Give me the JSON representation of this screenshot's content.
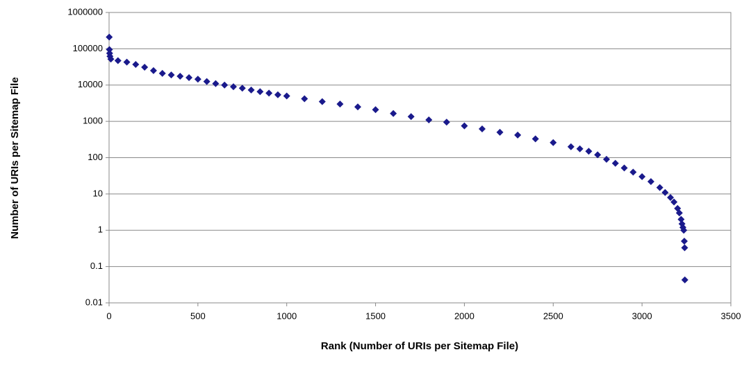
{
  "chart_data": {
    "type": "scatter",
    "x_label": "Rank (Number of URIs per Sitemap File)",
    "y_label": "Number of URIs per Sitemap File",
    "color": "#1a1a8c",
    "y_log": true,
    "grid": true,
    "x": [
      1,
      2,
      3,
      5,
      10,
      50,
      100,
      150,
      200,
      250,
      300,
      350,
      400,
      450,
      500,
      550,
      600,
      650,
      700,
      750,
      800,
      850,
      900,
      950,
      1000,
      1100,
      1200,
      1300,
      1400,
      1500,
      1600,
      1700,
      1800,
      1900,
      2000,
      2100,
      2200,
      2300,
      2400,
      2500,
      2600,
      2650,
      2700,
      2750,
      2800,
      2850,
      2900,
      2950,
      3000,
      3050,
      3100,
      3130,
      3160,
      3180,
      3200,
      3210,
      3220,
      3225,
      3230,
      3235,
      3238,
      3240,
      3241
    ],
    "values": [
      210000,
      95000,
      75000,
      62000,
      52000,
      47000,
      43000,
      37000,
      31000,
      25000,
      21000,
      19000,
      17500,
      16000,
      14500,
      12500,
      11000,
      10000,
      9000,
      8200,
      7300,
      6600,
      6000,
      5400,
      5000,
      4200,
      3500,
      3000,
      2500,
      2100,
      1650,
      1350,
      1100,
      950,
      750,
      620,
      500,
      420,
      330,
      260,
      200,
      175,
      150,
      120,
      90,
      70,
      52,
      40,
      30,
      22,
      15,
      11,
      8,
      6,
      4,
      3,
      2,
      1.5,
      1.2,
      1,
      0.5,
      0.33,
      0.043
    ],
    "xlim": [
      0,
      3500
    ],
    "xticks": [
      0,
      500,
      1000,
      1500,
      2000,
      2500,
      3000,
      3500
    ],
    "ylim": [
      0.01,
      1000000
    ],
    "yticks": [
      0.01,
      0.1,
      1,
      10,
      100,
      1000,
      10000,
      100000,
      1000000
    ]
  }
}
